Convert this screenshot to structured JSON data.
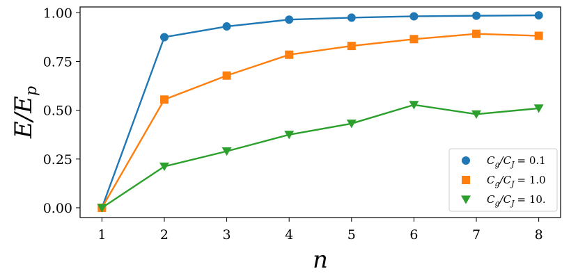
{
  "chart_data": {
    "type": "line",
    "xlabel": "n",
    "ylabel": "E/E_p",
    "ylabel_display": {
      "main": "E/E",
      "sub": "p"
    },
    "x": [
      1,
      2,
      3,
      4,
      5,
      6,
      7,
      8
    ],
    "xlim": [
      0.65,
      8.35
    ],
    "ylim": [
      -0.05,
      1.03
    ],
    "xticks": [
      1,
      2,
      3,
      4,
      5,
      6,
      7,
      8
    ],
    "yticks": [
      0.0,
      0.25,
      0.5,
      0.75,
      1.0
    ],
    "ytick_labels": [
      "0.00",
      "0.25",
      "0.50",
      "0.75",
      "1.00"
    ],
    "grid": false,
    "legend_position": "lower-right",
    "series": [
      {
        "name": "C_g/C_J = 0.1",
        "label_parts": {
          "a": "C",
          "a_sub": "g",
          "b": "C",
          "b_sub": "J",
          "value": "= 0.1"
        },
        "color": "#1f77b4",
        "marker": "circle",
        "values": [
          0.0,
          0.875,
          0.93,
          0.965,
          0.975,
          0.982,
          0.985,
          0.987
        ]
      },
      {
        "name": "C_g/C_J = 1.0",
        "label_parts": {
          "a": "C",
          "a_sub": "g",
          "b": "C",
          "b_sub": "J",
          "value": "= 1.0"
        },
        "color": "#ff7f0e",
        "marker": "square",
        "values": [
          0.0,
          0.555,
          0.678,
          0.785,
          0.83,
          0.865,
          0.892,
          0.882
        ]
      },
      {
        "name": "C_g/C_J = 10.",
        "label_parts": {
          "a": "C",
          "a_sub": "g",
          "b": "C",
          "b_sub": "J",
          "value": "= 10."
        },
        "color": "#2ca02c",
        "marker": "triangle-down",
        "values": [
          0.0,
          0.212,
          0.29,
          0.375,
          0.432,
          0.528,
          0.48,
          0.51
        ]
      }
    ]
  }
}
